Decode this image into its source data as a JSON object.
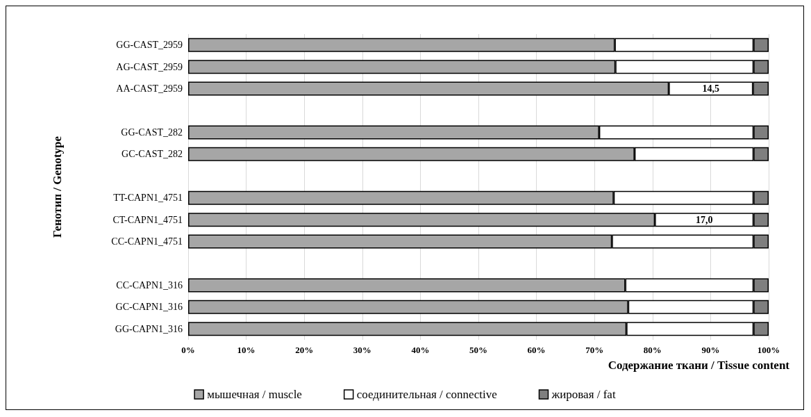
{
  "chart_data": {
    "type": "bar",
    "orientation": "horizontal",
    "stacked": true,
    "xlabel": "Содержание ткани / Tissue content",
    "ylabel": "Генотип / Genotype",
    "categories": [
      "GG-CAST_2959",
      "AG-CAST_2959",
      "AA-CAST_2959",
      null,
      "GG-CAST_282",
      "GC-CAST_282",
      null,
      "TT-CAPN1_4751",
      "CT-CAPN1_4751",
      "CC-CAPN1_4751",
      null,
      "CC-CAPN1_316",
      "GC-CAPN1_316",
      "GG-CAPN1_316"
    ],
    "series": [
      {
        "name": "мышечная / muscle",
        "color": "#a6a6a6",
        "values": [
          73.5,
          73.6,
          82.8,
          null,
          70.8,
          76.9,
          null,
          73.3,
          80.4,
          73.0,
          null,
          75.3,
          75.8,
          75.5
        ]
      },
      {
        "name": "соединительная / connective",
        "color": "#ffffff",
        "values": [
          23.9,
          23.8,
          14.5,
          null,
          26.6,
          20.5,
          null,
          24.1,
          17.0,
          24.4,
          null,
          22.1,
          21.6,
          21.9
        ],
        "value_labels": [
          null,
          null,
          "14,5",
          null,
          null,
          null,
          null,
          null,
          "17,0",
          null,
          null,
          null,
          null,
          null
        ]
      },
      {
        "name": "жировая / fat",
        "color": "#7f7f7f",
        "values": [
          2.6,
          2.6,
          2.7,
          null,
          2.6,
          2.6,
          null,
          2.6,
          2.6,
          2.6,
          null,
          2.6,
          2.6,
          2.6
        ]
      }
    ],
    "xlim": [
      0,
      100
    ],
    "xticks": [
      {
        "value": 0,
        "label": "0%"
      },
      {
        "value": 10,
        "label": "10%"
      },
      {
        "value": 20,
        "label": "20%"
      },
      {
        "value": 30,
        "label": "30%"
      },
      {
        "value": 40,
        "label": "40%"
      },
      {
        "value": 50,
        "label": "50%"
      },
      {
        "value": 60,
        "label": "60%"
      },
      {
        "value": 70,
        "label": "70%"
      },
      {
        "value": 80,
        "label": "80%"
      },
      {
        "value": 90,
        "label": "90%"
      },
      {
        "value": 100,
        "label": "100%"
      }
    ],
    "grid": "x",
    "legend": "bottom"
  }
}
